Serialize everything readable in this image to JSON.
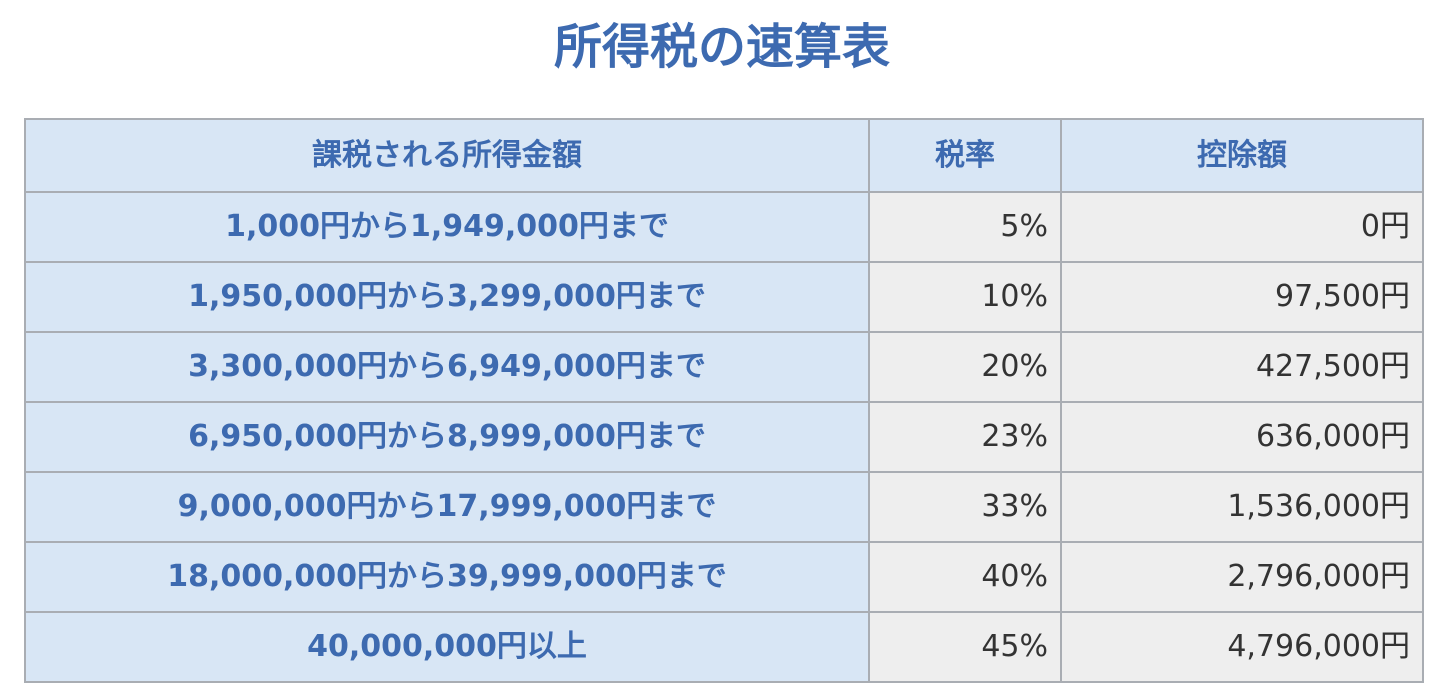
{
  "title": "所得税の速算表",
  "table": {
    "headers": [
      "課税される所得金額",
      "税率",
      "控除額"
    ],
    "rows": [
      {
        "range": "1,000円から1,949,000円まで",
        "rate": "5%",
        "deduction": "0円"
      },
      {
        "range": "1,950,000円から3,299,000円まで",
        "rate": "10%",
        "deduction": "97,500円"
      },
      {
        "range": "3,300,000円から6,949,000円まで",
        "rate": "20%",
        "deduction": "427,500円"
      },
      {
        "range": "6,950,000円から8,999,000円まで",
        "rate": "23%",
        "deduction": "636,000円"
      },
      {
        "range": "9,000,000円から17,999,000円まで",
        "rate": "33%",
        "deduction": "1,536,000円"
      },
      {
        "range": "18,000,000円から39,999,000円まで",
        "rate": "40%",
        "deduction": "2,796,000円"
      },
      {
        "range": "40,000,000円以上",
        "rate": "45%",
        "deduction": "4,796,000円"
      }
    ]
  },
  "colors": {
    "accent_text": "#3d6ab0",
    "header_bg": "#d8e6f5",
    "value_cell_bg": "#eeeeee",
    "border": "#a9adb3"
  }
}
